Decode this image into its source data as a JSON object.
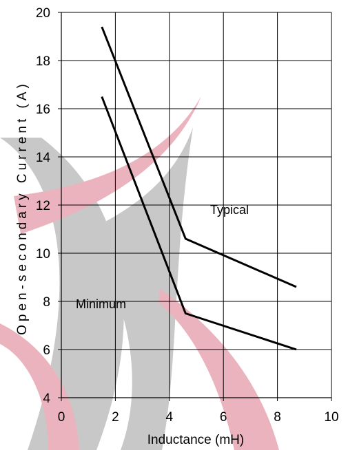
{
  "chart_data": {
    "type": "line",
    "title": "",
    "xlabel": "Inductance (mH)",
    "ylabel": "Open-secondary Current (A)",
    "xlim": [
      0,
      10
    ],
    "ylim": [
      4,
      20
    ],
    "x_ticks": [
      0,
      2,
      4,
      6,
      8,
      10
    ],
    "y_ticks": [
      4,
      6,
      8,
      10,
      12,
      14,
      16,
      18,
      20
    ],
    "grid": true,
    "series": [
      {
        "name": "Typical",
        "color": "#000000",
        "x": [
          1.5,
          4.6,
          8.7
        ],
        "y": [
          19.4,
          10.6,
          8.6
        ]
      },
      {
        "name": "Minimum",
        "color": "#000000",
        "x": [
          1.5,
          4.6,
          8.7
        ],
        "y": [
          16.5,
          7.5,
          6.0
        ]
      }
    ]
  },
  "watermark": {
    "colors": {
      "gray": "#c8c8c8",
      "pink": "#ebb3bd"
    }
  }
}
